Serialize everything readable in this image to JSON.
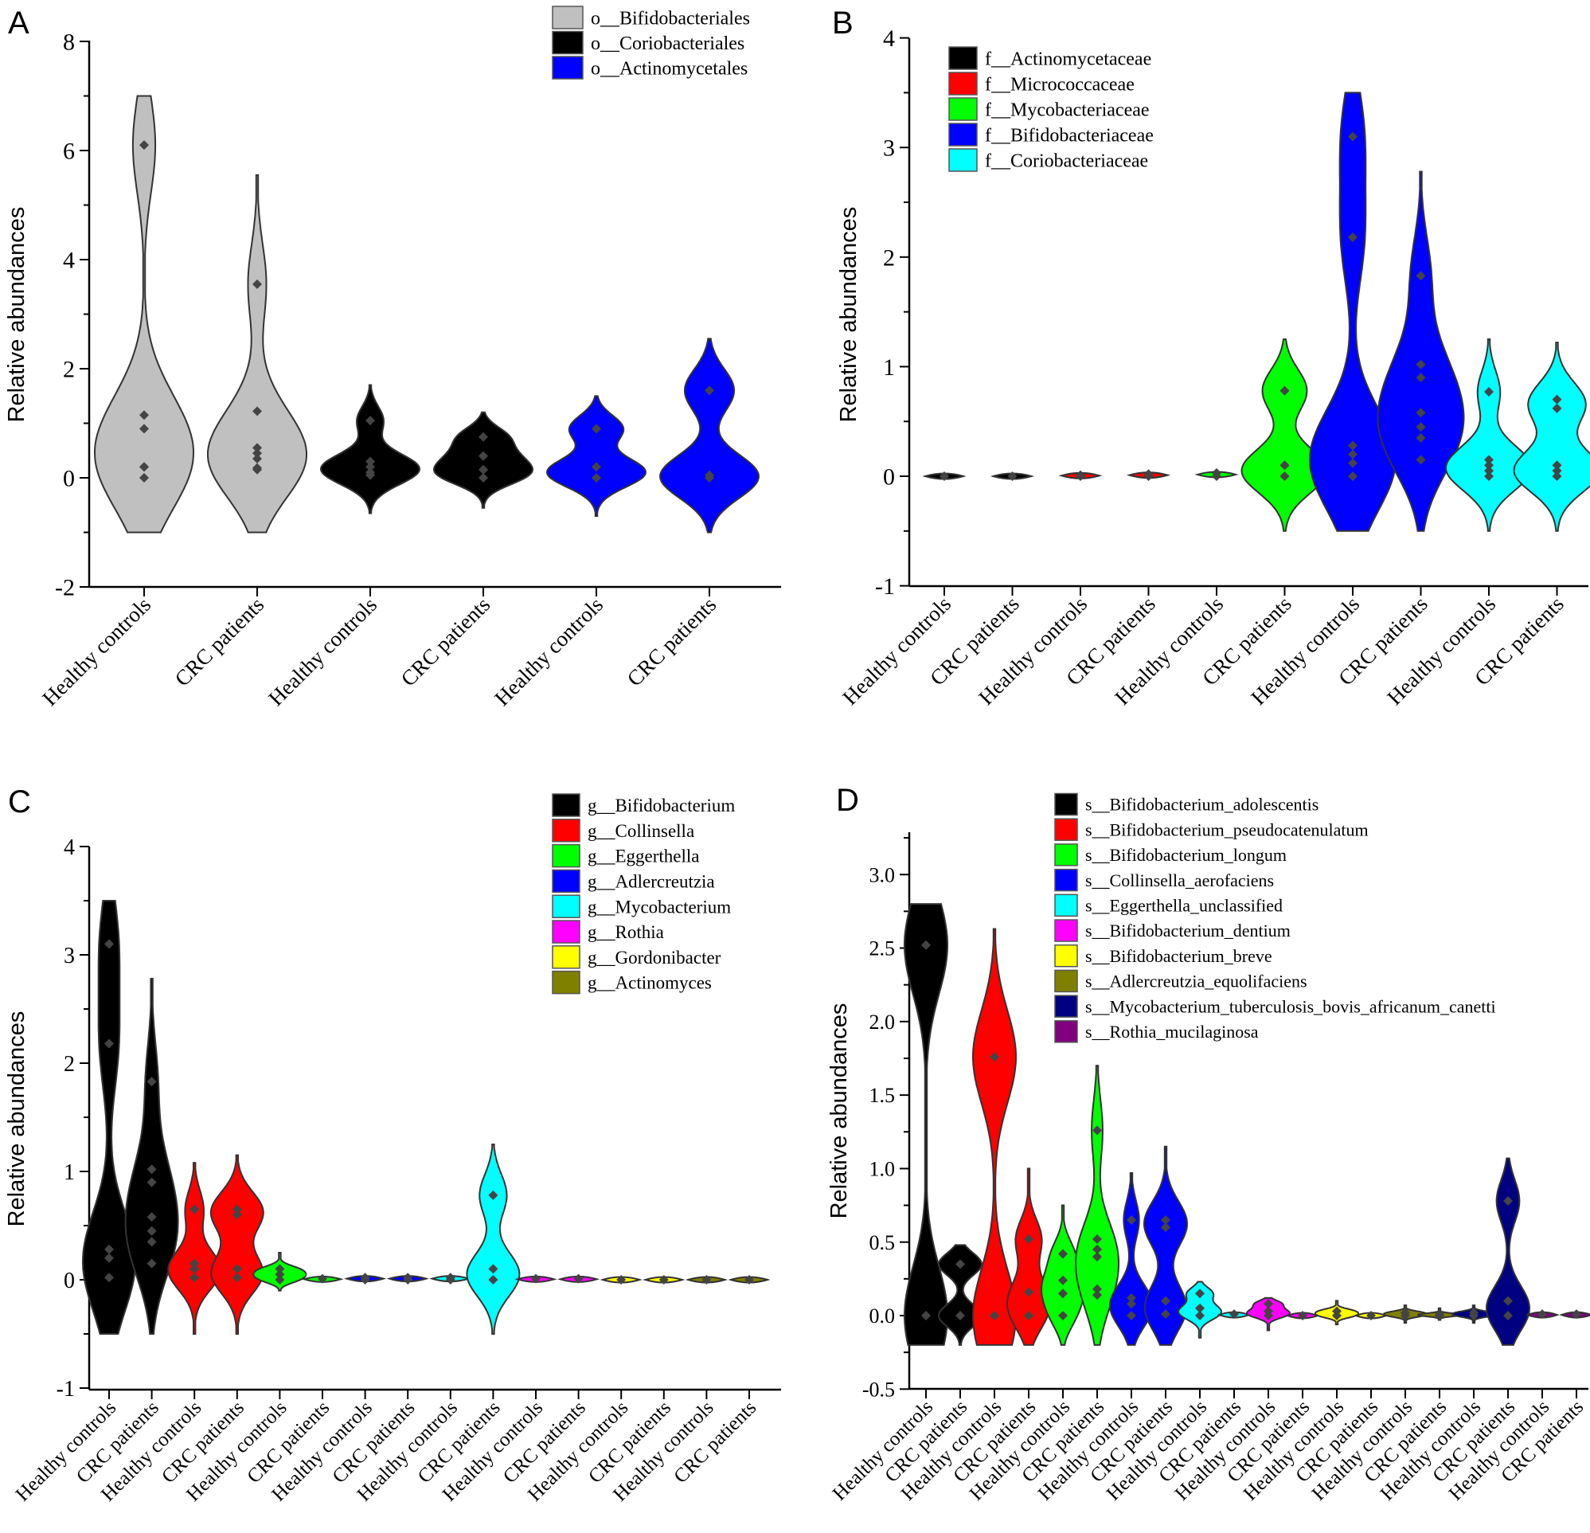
{
  "chart_data": [
    {
      "panel_label": "A",
      "type": "violin",
      "ylabel": "Relative abundances",
      "xlabel": "",
      "ylim": [
        -2,
        8
      ],
      "yticks": [
        -2,
        0,
        2,
        4,
        6,
        8
      ],
      "ytick_labels": [
        "-2",
        "0",
        "2",
        "4",
        "6",
        "8"
      ],
      "grid": false,
      "legend_position": "top-right",
      "legend": [
        {
          "label": "o__Bifidobacteriales",
          "color": "#c0c0c0"
        },
        {
          "label": "o__Coriobacteriales",
          "color": "#000000"
        },
        {
          "label": "o__Actinomycetales",
          "color": "#0000ff"
        }
      ],
      "categories": [
        "Healthy controls",
        "CRC patients",
        "Healthy controls",
        "CRC patients",
        "Healthy controls",
        "CRC patients"
      ],
      "violins": [
        {
          "series": 0,
          "points": [
            6.1,
            1.15,
            0.9,
            0.2,
            0.2,
            0
          ],
          "extent": [
            -1,
            7
          ]
        },
        {
          "series": 0,
          "points": [
            3.55,
            1.22,
            0.55,
            0.45,
            0.35,
            0.18,
            0.15
          ],
          "extent": [
            -1,
            5.55
          ]
        },
        {
          "series": 1,
          "points": [
            1.05,
            0.3,
            0.2,
            0.1,
            0.05
          ],
          "extent": [
            -0.65,
            1.7
          ]
        },
        {
          "series": 1,
          "points": [
            0.75,
            0.4,
            0.15,
            0
          ],
          "extent": [
            -0.55,
            1.2
          ]
        },
        {
          "series": 2,
          "points": [
            0.9,
            0.2,
            0
          ],
          "extent": [
            -0.7,
            1.5
          ]
        },
        {
          "series": 2,
          "points": [
            1.6,
            0.05,
            0
          ],
          "extent": [
            -1,
            2.55
          ]
        }
      ]
    },
    {
      "panel_label": "B",
      "type": "violin",
      "ylabel": "Relative abundances",
      "xlabel": "",
      "ylim": [
        -1,
        4
      ],
      "yticks": [
        -1,
        0,
        1,
        2,
        3,
        4
      ],
      "ytick_labels": [
        "-1",
        "0",
        "1",
        "2",
        "3",
        "4"
      ],
      "grid": false,
      "legend_position": "top-left",
      "legend": [
        {
          "label": "f__Actinomycetaceae",
          "color": "#000000"
        },
        {
          "label": "f__Micrococcaceae",
          "color": "#ff0000"
        },
        {
          "label": "f__Mycobacteriaceae",
          "color": "#00ff00"
        },
        {
          "label": "f__Bifidobacteriaceae",
          "color": "#0000ff"
        },
        {
          "label": "f__Coriobacteriaceae",
          "color": "#00ffff"
        }
      ],
      "categories": [
        "Healthy controls",
        "CRC patients",
        "Healthy controls",
        "CRC patients",
        "Healthy controls",
        "CRC patients",
        "Healthy controls",
        "CRC patients",
        "Healthy controls",
        "CRC patients"
      ],
      "violins": [
        {
          "series": 0,
          "points": [
            0
          ],
          "extent": [
            0,
            0
          ]
        },
        {
          "series": 0,
          "points": [
            0
          ],
          "extent": [
            0,
            0
          ]
        },
        {
          "series": 1,
          "points": [
            0.01,
            0
          ],
          "extent": [
            0,
            0.01
          ]
        },
        {
          "series": 1,
          "points": [
            0.02,
            0
          ],
          "extent": [
            0,
            0.02
          ]
        },
        {
          "series": 2,
          "points": [
            0.03,
            0
          ],
          "extent": [
            0,
            0.03
          ]
        },
        {
          "series": 2,
          "points": [
            0.78,
            0.1,
            0
          ],
          "extent": [
            -0.5,
            1.25
          ]
        },
        {
          "series": 3,
          "points": [
            3.1,
            2.18,
            0.28,
            0.2,
            0.12,
            0
          ],
          "extent": [
            -0.5,
            3.5
          ]
        },
        {
          "series": 3,
          "points": [
            1.83,
            1.02,
            0.9,
            0.58,
            0.45,
            0.35,
            0.15
          ],
          "extent": [
            -0.5,
            2.78
          ]
        },
        {
          "series": 4,
          "points": [
            0.77,
            0.15,
            0.1,
            0.05,
            0
          ],
          "extent": [
            -0.5,
            1.25
          ]
        },
        {
          "series": 4,
          "points": [
            0.7,
            0.62,
            0.1,
            0.05,
            0
          ],
          "extent": [
            -0.5,
            1.22
          ]
        }
      ]
    },
    {
      "panel_label": "C",
      "type": "violin",
      "ylabel": "Relative abundances",
      "xlabel": "",
      "ylim": [
        -1,
        4
      ],
      "yticks": [
        -1,
        0,
        1,
        2,
        3,
        4
      ],
      "ytick_labels": [
        "-1",
        "0",
        "1",
        "2",
        "3",
        "4"
      ],
      "grid": false,
      "legend_position": "top-right",
      "legend": [
        {
          "label": "g__Bifidobacterium",
          "color": "#000000"
        },
        {
          "label": "g__Collinsella",
          "color": "#ff0000"
        },
        {
          "label": "g__Eggerthella",
          "color": "#00ff00"
        },
        {
          "label": "g__Adlercreutzia",
          "color": "#0000ff"
        },
        {
          "label": "g__Mycobacterium",
          "color": "#00ffff"
        },
        {
          "label": "g__Rothia",
          "color": "#ff00ff"
        },
        {
          "label": "g__Gordonibacter",
          "color": "#ffff00"
        },
        {
          "label": "g__Actinomyces",
          "color": "#808000"
        }
      ],
      "categories": [
        "Healthy controls",
        "CRC patients",
        "Healthy controls",
        "CRC patients",
        "Healthy controls",
        "CRC patients",
        "Healthy controls",
        "CRC patients",
        "Healthy controls",
        "CRC patients",
        "Healthy controls",
        "CRC patients",
        "Healthy controls",
        "CRC patients",
        "Healthy controls",
        "CRC patients"
      ],
      "violins": [
        {
          "series": 0,
          "points": [
            3.1,
            2.18,
            0.28,
            0.2,
            0.02
          ],
          "extent": [
            -0.5,
            3.5
          ]
        },
        {
          "series": 0,
          "points": [
            1.83,
            1.02,
            0.9,
            0.58,
            0.45,
            0.35,
            0.15
          ],
          "extent": [
            -0.5,
            2.78
          ]
        },
        {
          "series": 1,
          "points": [
            0.65,
            0.15,
            0.1,
            0.02
          ],
          "extent": [
            -0.5,
            1.08
          ]
        },
        {
          "series": 1,
          "points": [
            0.65,
            0.6,
            0.1,
            0.02
          ],
          "extent": [
            -0.5,
            1.15
          ]
        },
        {
          "series": 2,
          "points": [
            0.1,
            0.05,
            0
          ],
          "extent": [
            -0.1,
            0.25
          ]
        },
        {
          "series": 2,
          "points": [
            0.01
          ],
          "extent": [
            0,
            0.01
          ]
        },
        {
          "series": 3,
          "points": [
            0.02,
            0
          ],
          "extent": [
            0,
            0.02
          ]
        },
        {
          "series": 3,
          "points": [
            0.02,
            0
          ],
          "extent": [
            0,
            0.02
          ]
        },
        {
          "series": 4,
          "points": [
            0.02,
            0
          ],
          "extent": [
            0,
            0.02
          ]
        },
        {
          "series": 4,
          "points": [
            0.78,
            0.1,
            0
          ],
          "extent": [
            -0.5,
            1.25
          ]
        },
        {
          "series": 5,
          "points": [
            0.01
          ],
          "extent": [
            0,
            0.01
          ]
        },
        {
          "series": 5,
          "points": [
            0.01
          ],
          "extent": [
            0,
            0.01
          ]
        },
        {
          "series": 6,
          "points": [
            0
          ],
          "extent": [
            0,
            0
          ]
        },
        {
          "series": 6,
          "points": [
            0
          ],
          "extent": [
            0,
            0
          ]
        },
        {
          "series": 7,
          "points": [
            0
          ],
          "extent": [
            0,
            0
          ]
        },
        {
          "series": 7,
          "points": [
            0
          ],
          "extent": [
            0,
            0
          ]
        }
      ]
    },
    {
      "panel_label": "D",
      "type": "violin",
      "ylabel": "Relative abundances",
      "xlabel": "",
      "ylim": [
        -0.5,
        3.25
      ],
      "yticks": [
        -0.5,
        0,
        0.5,
        1,
        1.5,
        2,
        2.5,
        3
      ],
      "ytick_labels": [
        "-0.5",
        "0.0",
        "0.5",
        "1.0",
        "1.5",
        "2.0",
        "2.5",
        "3.0"
      ],
      "grid": false,
      "legend_position": "top-right",
      "legend": [
        {
          "label": "s__Bifidobacterium_adolescentis",
          "color": "#000000"
        },
        {
          "label": "s__Bifidobacterium_pseudocatenulatum",
          "color": "#ff0000"
        },
        {
          "label": "s__Bifidobacterium_longum",
          "color": "#00ff00"
        },
        {
          "label": "s__Collinsella_aerofaciens",
          "color": "#0000ff"
        },
        {
          "label": "s__Eggerthella_unclassified",
          "color": "#00ffff"
        },
        {
          "label": "s__Bifidobacterium_dentium",
          "color": "#ff00ff"
        },
        {
          "label": "s__Bifidobacterium_breve",
          "color": "#ffff00"
        },
        {
          "label": "s__Adlercreutzia_equolifaciens",
          "color": "#808000"
        },
        {
          "label": "s__Mycobacterium_tuberculosis_bovis_africanum_canetti",
          "color": "#000080"
        },
        {
          "label": "s__Rothia_mucilaginosa",
          "color": "#800080"
        }
      ],
      "categories": [
        "Healthy controls",
        "CRC patients",
        "Healthy controls",
        "CRC patients",
        "Healthy controls",
        "CRC patients",
        "Healthy controls",
        "CRC patients",
        "Healthy controls",
        "CRC patients",
        "Healthy controls",
        "CRC patients",
        "Healthy controls",
        "CRC patients",
        "Healthy controls",
        "CRC patients",
        "Healthy controls",
        "CRC patients",
        "Healthy controls",
        "CRC patients"
      ],
      "violins": [
        {
          "series": 0,
          "points": [
            2.52,
            0
          ],
          "extent": [
            -0.2,
            2.8
          ]
        },
        {
          "series": 0,
          "points": [
            0.35,
            0
          ],
          "extent": [
            -0.2,
            0.48
          ]
        },
        {
          "series": 1,
          "points": [
            1.76,
            0
          ],
          "extent": [
            -0.2,
            2.63
          ]
        },
        {
          "series": 1,
          "points": [
            0.52,
            0.16,
            0
          ],
          "extent": [
            -0.2,
            1.0
          ]
        },
        {
          "series": 2,
          "points": [
            0.42,
            0.24,
            0.15,
            0
          ],
          "extent": [
            -0.2,
            0.75
          ]
        },
        {
          "series": 2,
          "points": [
            1.26,
            0.52,
            0.45,
            0.4,
            0.18,
            0.14
          ],
          "extent": [
            -0.2,
            1.7
          ]
        },
        {
          "series": 3,
          "points": [
            0.65,
            0.12,
            0.08,
            0
          ],
          "extent": [
            -0.2,
            0.97
          ]
        },
        {
          "series": 3,
          "points": [
            0.65,
            0.6,
            0.1,
            0.01
          ],
          "extent": [
            -0.2,
            1.15
          ]
        },
        {
          "series": 4,
          "points": [
            0.15,
            0.05,
            0
          ],
          "extent": [
            -0.15,
            0.23
          ]
        },
        {
          "series": 4,
          "points": [
            0.01
          ],
          "extent": [
            0,
            0.01
          ]
        },
        {
          "series": 5,
          "points": [
            0.08,
            0.03,
            0
          ],
          "extent": [
            -0.1,
            0.12
          ]
        },
        {
          "series": 5,
          "points": [
            0
          ],
          "extent": [
            0,
            0
          ]
        },
        {
          "series": 6,
          "points": [
            0.03,
            0
          ],
          "extent": [
            -0.06,
            0.1
          ]
        },
        {
          "series": 6,
          "points": [
            0
          ],
          "extent": [
            0,
            0
          ]
        },
        {
          "series": 7,
          "points": [
            0.02,
            0
          ],
          "extent": [
            -0.05,
            0.07
          ]
        },
        {
          "series": 7,
          "points": [
            0.01,
            0
          ],
          "extent": [
            -0.03,
            0.05
          ]
        },
        {
          "series": 8,
          "points": [
            0.02,
            0
          ],
          "extent": [
            -0.05,
            0.07
          ]
        },
        {
          "series": 8,
          "points": [
            0.78,
            0.1,
            0
          ],
          "extent": [
            -0.2,
            1.07
          ]
        },
        {
          "series": 9,
          "points": [
            0.01
          ],
          "extent": [
            0,
            0.01
          ]
        },
        {
          "series": 9,
          "points": [
            0.01
          ],
          "extent": [
            0,
            0.01
          ]
        }
      ]
    }
  ]
}
